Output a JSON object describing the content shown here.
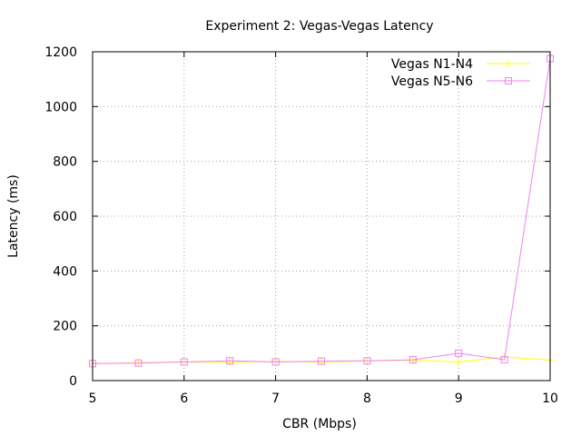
{
  "chart_data": {
    "type": "line",
    "title": "Experiment 2: Vegas-Vegas Latency",
    "xlabel": "CBR (Mbps)",
    "ylabel": "Latency (ms)",
    "xlim": [
      5,
      10
    ],
    "ylim": [
      0,
      1200
    ],
    "x_ticks": [
      5,
      6,
      7,
      8,
      9,
      10
    ],
    "y_ticks": [
      0,
      200,
      400,
      600,
      800,
      1000,
      1200
    ],
    "grid": true,
    "legend_position": "top-right",
    "x": [
      5,
      5.5,
      6,
      6.5,
      7,
      7.5,
      8,
      8.5,
      9,
      9.5,
      10
    ],
    "series": [
      {
        "name": "Vegas N1-N4",
        "color": "#ffff00",
        "marker": "plus",
        "values": [
          62,
          65,
          68,
          67,
          70,
          68,
          72,
          74,
          68,
          86,
          75
        ]
      },
      {
        "name": "Vegas N5-N6",
        "color": "#ee82ee",
        "marker": "open-square",
        "values": [
          62,
          64,
          68,
          72,
          68,
          71,
          72,
          76,
          100,
          76,
          1175
        ]
      }
    ]
  }
}
